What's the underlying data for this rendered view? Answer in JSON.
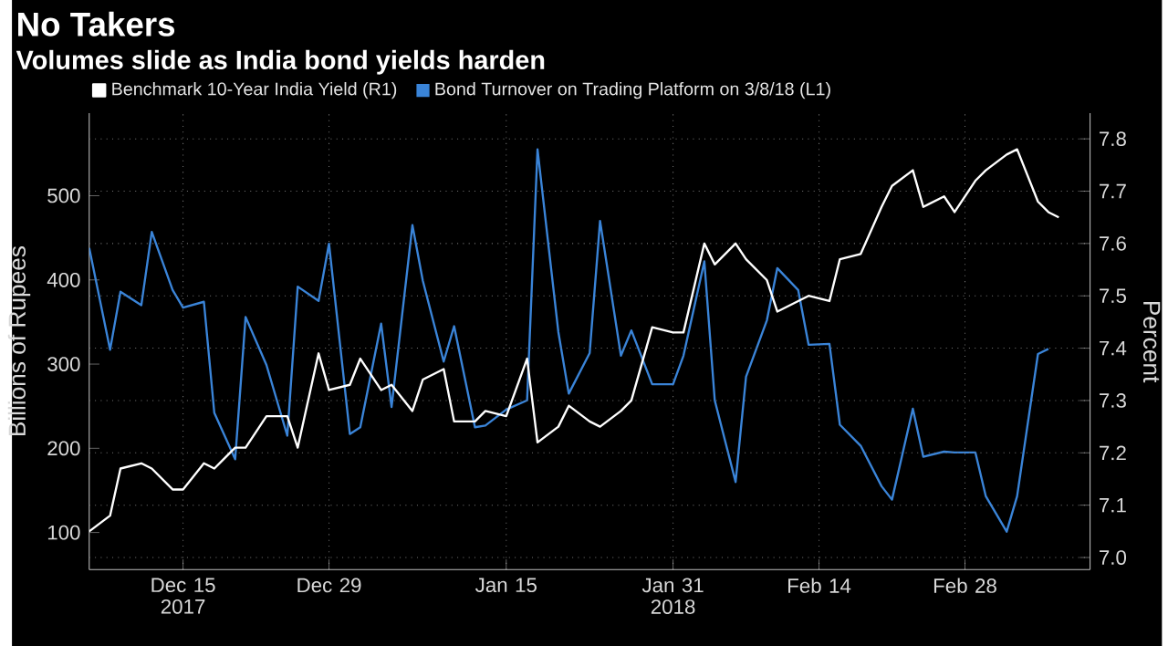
{
  "chart_data": {
    "type": "line",
    "title": "No Takers",
    "subtitle": "Volumes slide as India bond yields harden",
    "ylabel": "Billions of Rupees",
    "y2label": "Percent",
    "xlim": [
      "2017-12-06",
      "2018-03-12"
    ],
    "xticks": [
      {
        "value": "2017-12-15",
        "label": "Dec 15 2017"
      },
      {
        "value": "2017-12-29",
        "label": "Dec 29"
      },
      {
        "value": "2018-01-15",
        "label": "Jan 15"
      },
      {
        "value": "2018-01-31",
        "label": "Jan 31 2018"
      },
      {
        "value": "2018-02-14",
        "label": "Feb 14"
      },
      {
        "value": "2018-02-28",
        "label": "Feb 28"
      }
    ],
    "ylim": [
      56,
      598
    ],
    "yticks": [
      100,
      200,
      300,
      400,
      500
    ],
    "y2lim": [
      6.977,
      7.849
    ],
    "y2ticks": [
      {
        "value": 7.0,
        "label": "7.0"
      },
      {
        "value": 7.1,
        "label": "7.1"
      },
      {
        "value": 7.2,
        "label": "7.2"
      },
      {
        "value": 7.3,
        "label": "7.3"
      },
      {
        "value": 7.4,
        "label": "7.4"
      },
      {
        "value": 7.5,
        "label": "7.5"
      },
      {
        "value": 7.6,
        "label": "7.6"
      },
      {
        "value": 7.7,
        "label": "7.7"
      },
      {
        "value": 7.8,
        "label": "7.8"
      }
    ],
    "grid": true,
    "legend": "top left",
    "series": [
      {
        "name": "Benchmark 10-Year India Yield (R1)",
        "color": "#ffffff",
        "axis": "y2",
        "x": [
          "2017-12-06",
          "2017-12-08",
          "2017-12-09",
          "2017-12-11",
          "2017-12-12",
          "2017-12-14",
          "2017-12-15",
          "2017-12-17",
          "2017-12-18",
          "2017-12-20",
          "2017-12-21",
          "2017-12-23",
          "2017-12-25",
          "2017-12-26",
          "2017-12-28",
          "2017-12-29",
          "2017-12-31",
          "2018-01-01",
          "2018-01-03",
          "2018-01-04",
          "2018-01-06",
          "2018-01-07",
          "2018-01-09",
          "2018-01-10",
          "2018-01-12",
          "2018-01-13",
          "2018-01-15",
          "2018-01-17",
          "2018-01-18",
          "2018-01-20",
          "2018-01-21",
          "2018-01-23",
          "2018-01-24",
          "2018-01-26",
          "2018-01-27",
          "2018-01-29",
          "2018-01-31",
          "2018-02-01",
          "2018-02-03",
          "2018-02-04",
          "2018-02-06",
          "2018-02-07",
          "2018-02-09",
          "2018-02-10",
          "2018-02-12",
          "2018-02-13",
          "2018-02-15",
          "2018-02-16",
          "2018-02-18",
          "2018-02-20",
          "2018-02-21",
          "2018-02-23",
          "2018-02-24",
          "2018-02-26",
          "2018-02-27",
          "2018-03-01",
          "2018-03-02",
          "2018-03-04",
          "2018-03-05",
          "2018-03-07",
          "2018-03-08",
          "2018-03-09"
        ],
        "values": [
          7.05,
          7.08,
          7.17,
          7.18,
          7.17,
          7.13,
          7.13,
          7.18,
          7.17,
          7.21,
          7.21,
          7.27,
          7.27,
          7.21,
          7.39,
          7.32,
          7.33,
          7.38,
          7.32,
          7.33,
          7.28,
          7.34,
          7.36,
          7.26,
          7.26,
          7.28,
          7.27,
          7.38,
          7.22,
          7.25,
          7.29,
          7.26,
          7.25,
          7.28,
          7.3,
          7.44,
          7.43,
          7.43,
          7.6,
          7.56,
          7.6,
          7.57,
          7.53,
          7.47,
          7.49,
          7.5,
          7.49,
          7.57,
          7.58,
          7.67,
          7.71,
          7.74,
          7.67,
          7.69,
          7.66,
          7.72,
          7.74,
          7.77,
          7.78,
          7.68,
          7.66,
          7.65
        ]
      },
      {
        "name": "Bond Turnover on Trading Platform on 3/8/18 (L1)",
        "color": "#3a84d8",
        "axis": "y",
        "x": [
          "2017-12-06",
          "2017-12-08",
          "2017-12-09",
          "2017-12-11",
          "2017-12-12",
          "2017-12-14",
          "2017-12-15",
          "2017-12-17",
          "2017-12-18",
          "2017-12-20",
          "2017-12-21",
          "2017-12-23",
          "2017-12-25",
          "2017-12-26",
          "2017-12-28",
          "2017-12-29",
          "2017-12-31",
          "2018-01-01",
          "2018-01-03",
          "2018-01-04",
          "2018-01-06",
          "2018-01-07",
          "2018-01-09",
          "2018-01-10",
          "2018-01-12",
          "2018-01-13",
          "2018-01-15",
          "2018-01-17",
          "2018-01-18",
          "2018-01-20",
          "2018-01-21",
          "2018-01-23",
          "2018-01-24",
          "2018-01-26",
          "2018-01-27",
          "2018-01-29",
          "2018-01-31",
          "2018-02-01",
          "2018-02-03",
          "2018-02-04",
          "2018-02-06",
          "2018-02-07",
          "2018-02-09",
          "2018-02-10",
          "2018-02-12",
          "2018-02-13",
          "2018-02-15",
          "2018-02-16",
          "2018-02-18",
          "2018-02-20",
          "2018-02-21",
          "2018-02-23",
          "2018-02-24",
          "2018-02-26",
          "2018-02-27",
          "2018-03-01",
          "2018-03-02",
          "2018-03-04",
          "2018-03-05",
          "2018-03-07",
          "2018-03-08"
        ],
        "values": [
          438,
          317,
          386,
          370,
          457,
          388,
          367,
          374,
          242,
          187,
          356,
          299,
          215,
          392,
          375,
          443,
          217,
          225,
          348,
          249,
          465,
          399,
          303,
          345,
          225,
          227,
          246,
          257,
          555,
          338,
          265,
          313,
          470,
          310,
          340,
          276,
          276,
          310,
          422,
          257,
          160,
          285,
          352,
          414,
          388,
          323,
          324,
          228,
          203,
          155,
          139,
          247,
          190,
          196,
          195,
          195,
          143,
          101,
          143,
          312,
          318
        ]
      }
    ]
  }
}
